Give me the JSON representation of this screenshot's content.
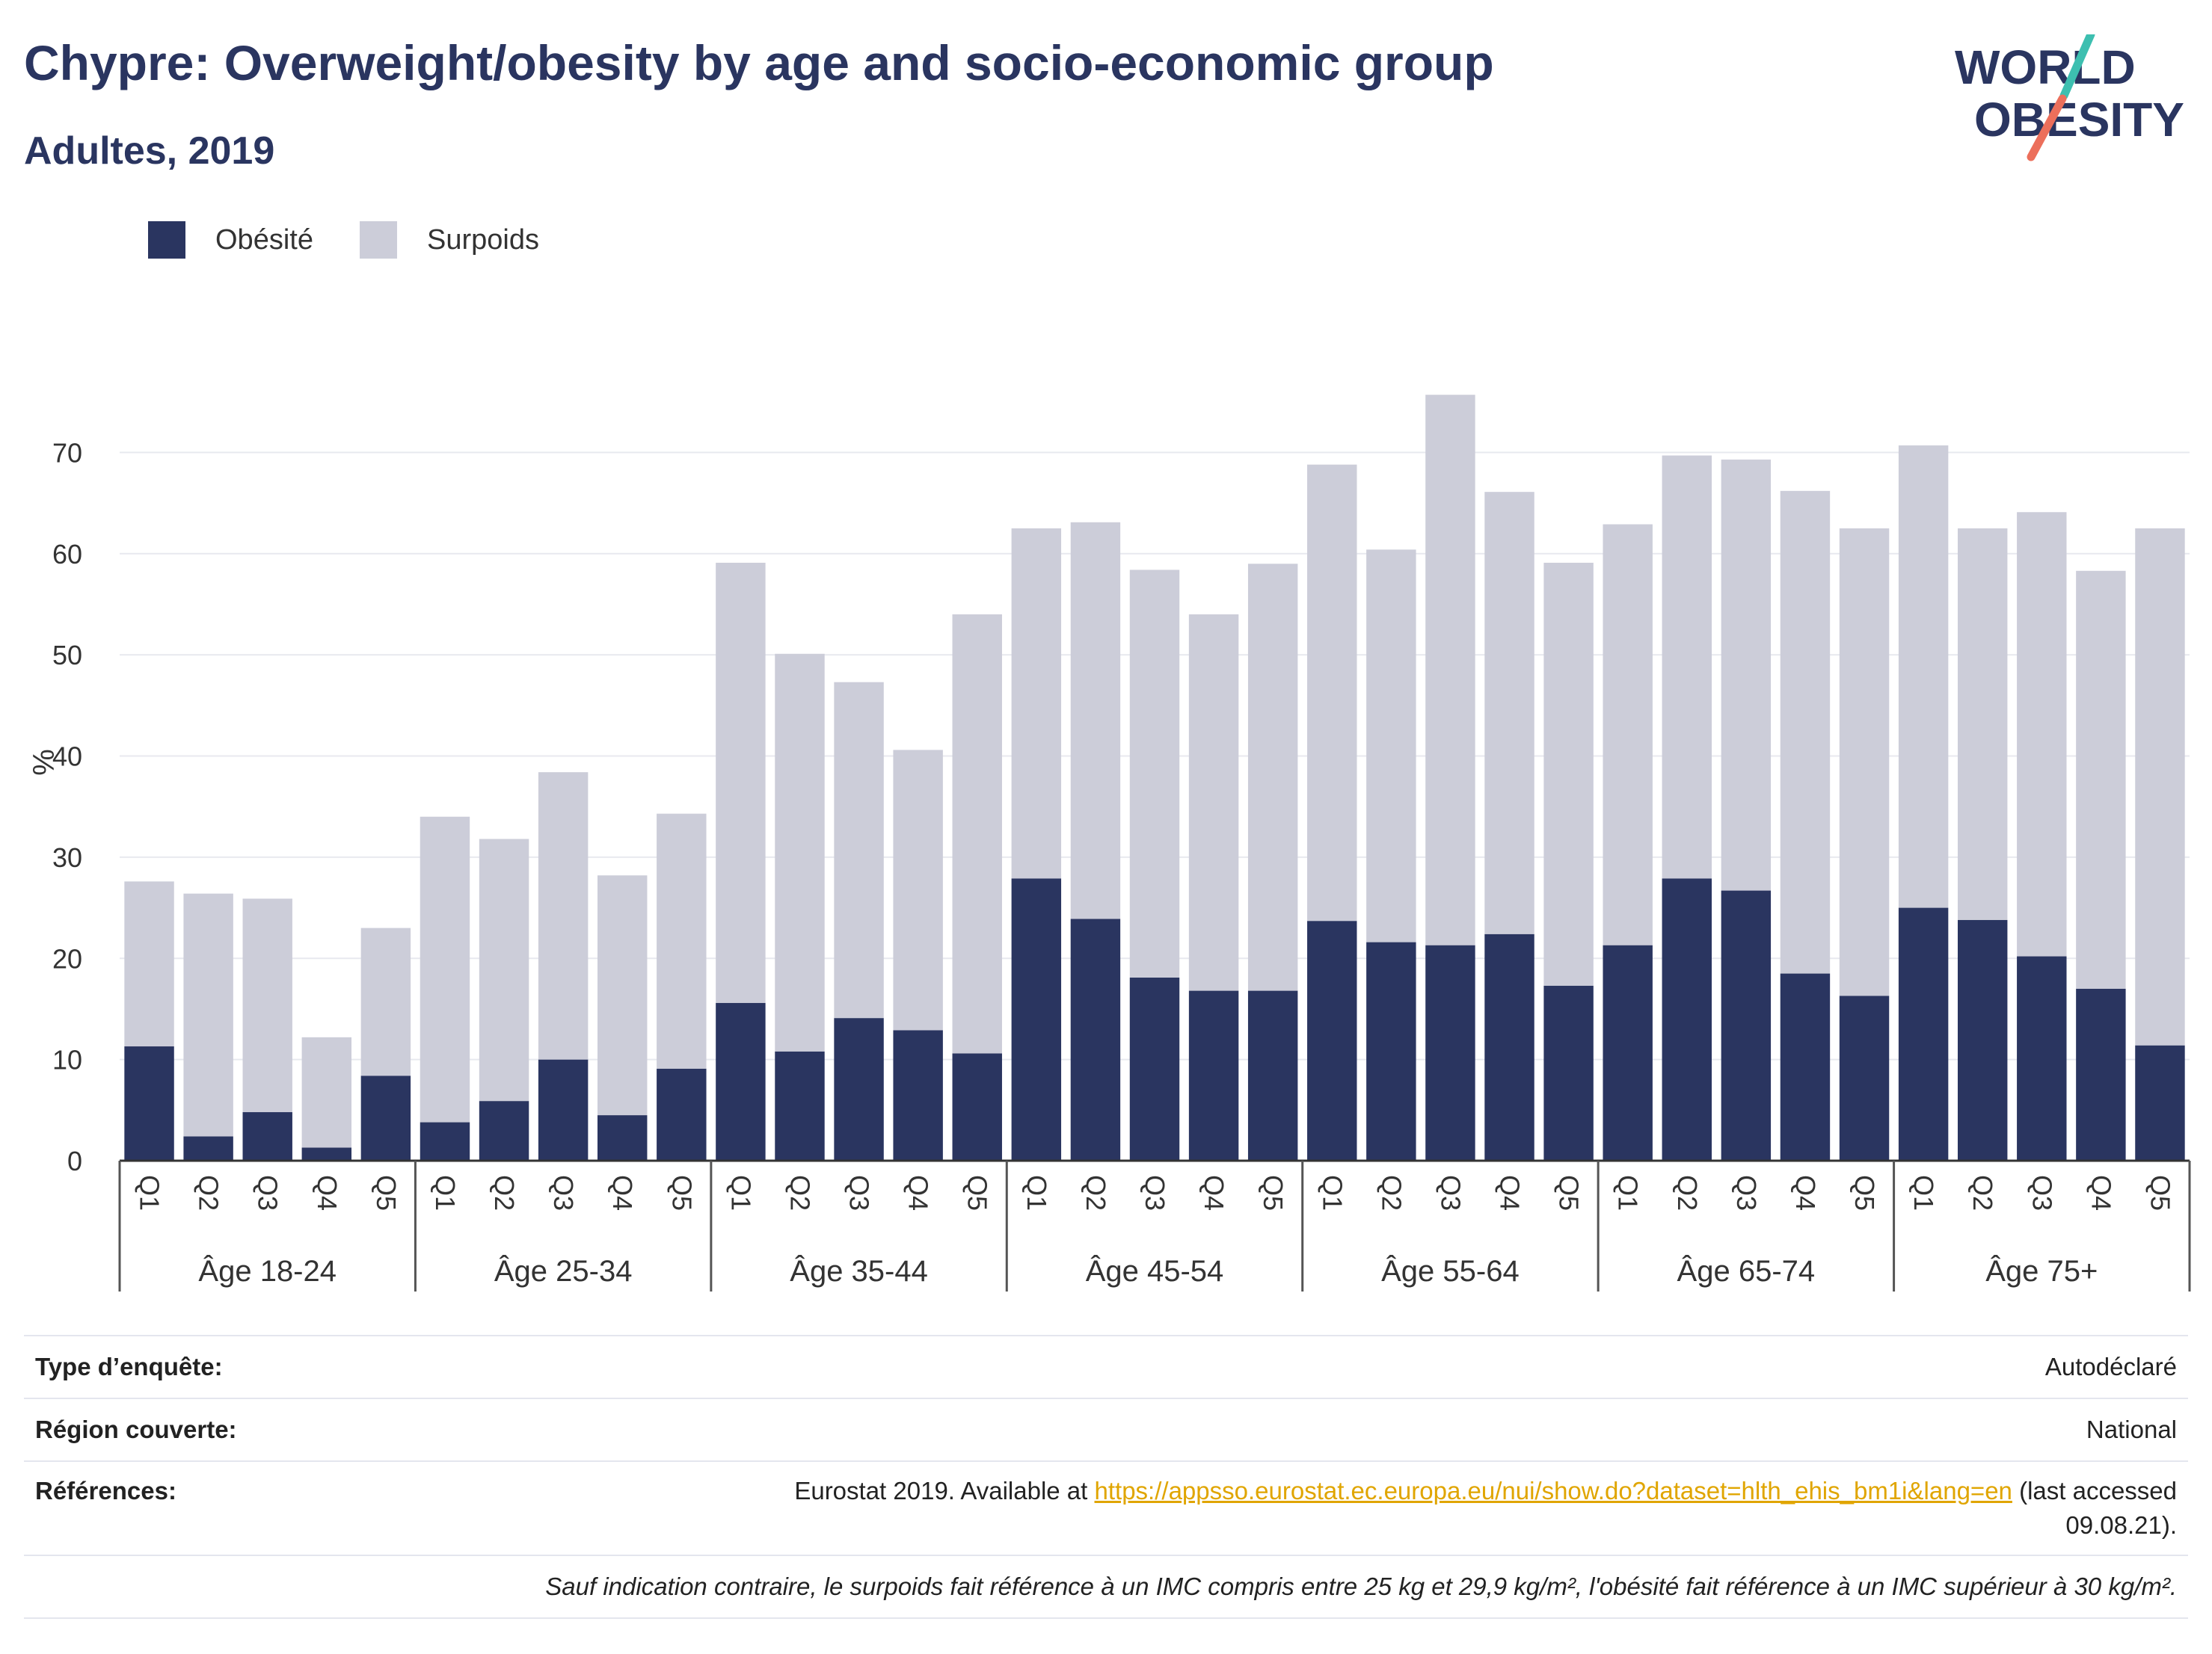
{
  "header": {
    "title": "Chypre: Overweight/obesity by age and socio-economic group",
    "subtitle": "Adultes, 2019"
  },
  "logo": {
    "line1": "WORLD",
    "line2": "OBESITY"
  },
  "colors": {
    "obesity": "#2a3560",
    "overweight": "#cccdd9",
    "title": "#2a3560",
    "link": "#e0a500"
  },
  "legend": [
    {
      "label": "Obésité",
      "color": "#2a3560"
    },
    {
      "label": "Surpoids",
      "color": "#cccdd9"
    }
  ],
  "chart_data": {
    "type": "bar",
    "stacked": true,
    "ylabel": "%",
    "ylim": [
      0,
      80
    ],
    "yticks": [
      0,
      10,
      20,
      30,
      40,
      50,
      60,
      70
    ],
    "grid": true,
    "legend_position": "top-left",
    "groups": [
      "Âge 18-24",
      "Âge 25-34",
      "Âge 35-44",
      "Âge 45-54",
      "Âge 55-64",
      "Âge 65-74",
      "Âge 75+"
    ],
    "subcategories": [
      "Q1",
      "Q2",
      "Q3",
      "Q4",
      "Q5"
    ],
    "series": [
      {
        "name": "Obésité",
        "values": [
          11.3,
          2.4,
          4.8,
          1.3,
          8.4,
          3.8,
          5.9,
          10.0,
          4.5,
          9.1,
          15.6,
          10.8,
          14.1,
          12.9,
          10.6,
          27.9,
          23.9,
          18.1,
          16.8,
          16.8,
          23.7,
          21.6,
          21.3,
          22.4,
          17.3,
          21.3,
          27.9,
          26.7,
          18.5,
          16.3,
          25.0,
          23.8,
          20.2,
          17.0,
          11.4
        ]
      },
      {
        "name": "Surpoids",
        "values": [
          16.3,
          24.0,
          21.1,
          10.9,
          14.6,
          30.2,
          25.9,
          28.4,
          23.7,
          25.2,
          43.5,
          39.3,
          33.2,
          27.7,
          43.4,
          34.6,
          39.2,
          40.3,
          37.2,
          42.2,
          45.1,
          38.8,
          54.4,
          43.7,
          41.8,
          41.6,
          41.8,
          42.6,
          47.7,
          46.2,
          45.7,
          38.7,
          43.9,
          41.3,
          51.1
        ]
      }
    ]
  },
  "info": {
    "survey_label": "Type d’enquête:",
    "survey_value": "Autodéclaré",
    "region_label": "Région couverte:",
    "region_value": "National",
    "ref_label": "Références:",
    "ref_prefix": "Eurostat 2019. Available at ",
    "ref_link": "https://appsso.eurostat.ec.europa.eu/nui/show.do?dataset=hlth_ehis_bm1i&lang=en",
    "ref_suffix_1": " (last accessed",
    "ref_suffix_2": "09.08.21).",
    "note": "Sauf indication contraire, le surpoids fait référence à un IMC compris entre 25 kg et 29,9 kg/m², l'obésité fait référence à un IMC supérieur à 30 kg/m²."
  }
}
